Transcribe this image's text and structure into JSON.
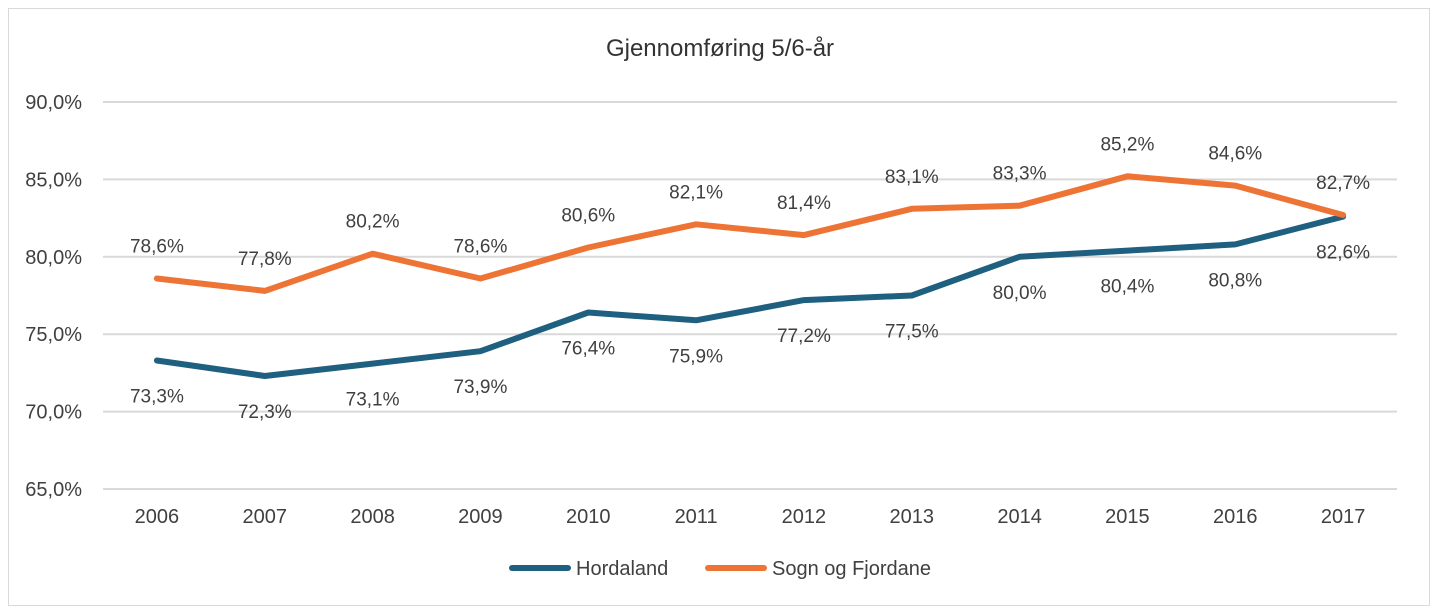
{
  "chart_data": {
    "type": "line",
    "title": "Gjennomføring 5/6-år",
    "x": [
      "2006",
      "2007",
      "2008",
      "2009",
      "2010",
      "2011",
      "2012",
      "2013",
      "2014",
      "2015",
      "2016",
      "2017"
    ],
    "ylim": [
      65.0,
      90.0
    ],
    "yticks": [
      65.0,
      70.0,
      75.0,
      80.0,
      85.0,
      90.0
    ],
    "ytick_labels": [
      "65,0%",
      "70,0%",
      "75,0%",
      "80,0%",
      "85,0%",
      "90,0%"
    ],
    "grid": true,
    "legend_position": "bottom",
    "series": [
      {
        "name": "Hordaland",
        "color": "#1f5f7f",
        "values": [
          73.3,
          72.3,
          73.1,
          73.9,
          76.4,
          75.9,
          77.2,
          77.5,
          80.0,
          80.4,
          80.8,
          82.6
        ],
        "labels": [
          "73,3%",
          "72,3%",
          "73,1%",
          "73,9%",
          "76,4%",
          "75,9%",
          "77,2%",
          "77,5%",
          "80,0%",
          "80,4%",
          "80,8%",
          "82,6%"
        ],
        "label_position": "below"
      },
      {
        "name": "Sogn og Fjordane",
        "color": "#ed7435",
        "values": [
          78.6,
          77.8,
          80.2,
          78.6,
          80.6,
          82.1,
          81.4,
          83.1,
          83.3,
          85.2,
          84.6,
          82.7
        ],
        "labels": [
          "78,6%",
          "77,8%",
          "80,2%",
          "78,6%",
          "80,6%",
          "82,1%",
          "81,4%",
          "83,1%",
          "83,3%",
          "85,2%",
          "84,6%",
          "82,7%"
        ],
        "label_position": "above"
      }
    ]
  }
}
